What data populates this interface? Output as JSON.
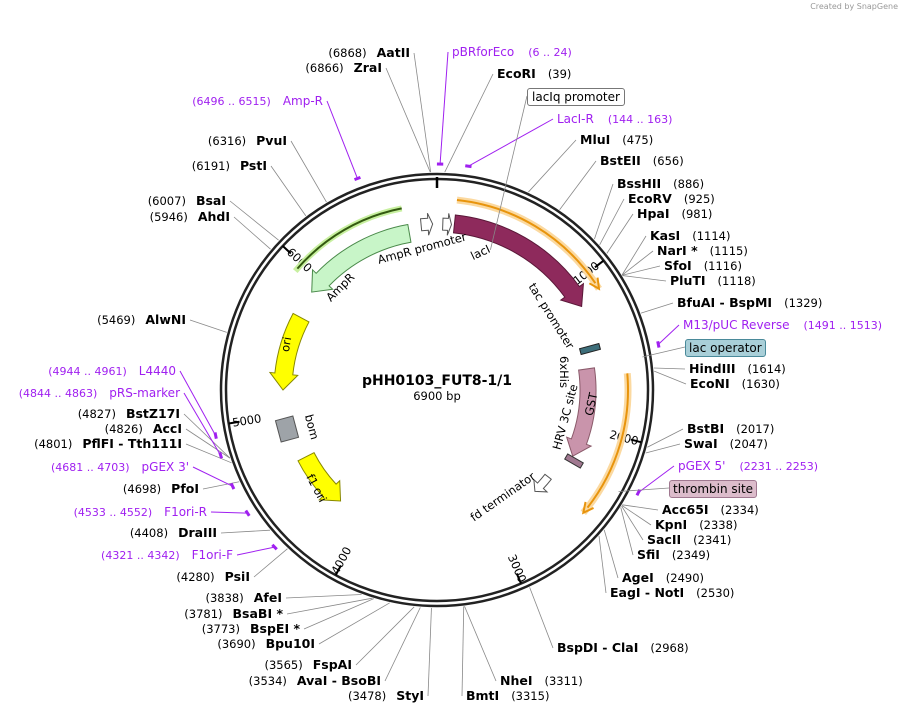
{
  "credit": "Created by SnapGene",
  "title": "pHH0103_FUT8-1/1",
  "size": "6900 bp",
  "total_bp": 6900,
  "ticks": [
    "1000",
    "2000",
    "3000",
    "4000",
    "5000",
    "6000"
  ],
  "sites": [
    {
      "name": "AatII",
      "pos": "(6868)",
      "bp": 6868
    },
    {
      "name": "ZraI",
      "pos": "(6866)",
      "bp": 6866
    },
    {
      "name": "EcoRI",
      "pos": "(39)",
      "bp": 39
    },
    {
      "name": "MluI",
      "pos": "(475)",
      "bp": 475
    },
    {
      "name": "BstEII",
      "pos": "(656)",
      "bp": 656
    },
    {
      "name": "BssHII",
      "pos": "(886)",
      "bp": 886
    },
    {
      "name": "EcoRV",
      "pos": "(925)",
      "bp": 925
    },
    {
      "name": "HpaI",
      "pos": "(981)",
      "bp": 981
    },
    {
      "name": "KasI",
      "pos": "(1114)",
      "bp": 1114
    },
    {
      "name": "NarI *",
      "pos": "(1115)",
      "bp": 1115
    },
    {
      "name": "SfoI",
      "pos": "(1116)",
      "bp": 1116
    },
    {
      "name": "PluTI",
      "pos": "(1118)",
      "bp": 1118
    },
    {
      "name": "BfuAI  - BspMI",
      "pos": "(1329)",
      "bp": 1329
    },
    {
      "name": "HindIII",
      "pos": "(1614)",
      "bp": 1614
    },
    {
      "name": "EcoNI",
      "pos": "(1630)",
      "bp": 1630
    },
    {
      "name": "BstBI",
      "pos": "(2017)",
      "bp": 2017
    },
    {
      "name": "SwaI",
      "pos": "(2047)",
      "bp": 2047
    },
    {
      "name": "Acc65I",
      "pos": "(2334)",
      "bp": 2334
    },
    {
      "name": "KpnI",
      "pos": "(2338)",
      "bp": 2338
    },
    {
      "name": "SacII",
      "pos": "(2341)",
      "bp": 2341
    },
    {
      "name": "SfiI",
      "pos": "(2349)",
      "bp": 2349
    },
    {
      "name": "AgeI",
      "pos": "(2490)",
      "bp": 2490
    },
    {
      "name": "EagI  - NotI",
      "pos": "(2530)",
      "bp": 2530
    },
    {
      "name": "BspDI  - ClaI",
      "pos": "(2968)",
      "bp": 2968
    },
    {
      "name": "NheI",
      "pos": "(3311)",
      "bp": 3311
    },
    {
      "name": "BmtI",
      "pos": "(3315)",
      "bp": 3315
    },
    {
      "name": "StyI",
      "pos": "(3478)",
      "bp": 3478
    },
    {
      "name": "AvaI  - BsoBI",
      "pos": "(3534)",
      "bp": 3534
    },
    {
      "name": "FspAI",
      "pos": "(3565)",
      "bp": 3565
    },
    {
      "name": "Bpu10I",
      "pos": "(3690)",
      "bp": 3690
    },
    {
      "name": "BspEI *",
      "pos": "(3773)",
      "bp": 3773
    },
    {
      "name": "BsaBI *",
      "pos": "(3781)",
      "bp": 3781
    },
    {
      "name": "AfeI",
      "pos": "(3838)",
      "bp": 3838
    },
    {
      "name": "PsiI",
      "pos": "(4280)",
      "bp": 4280
    },
    {
      "name": "DraIII",
      "pos": "(4408)",
      "bp": 4408
    },
    {
      "name": "PfoI",
      "pos": "(4698)",
      "bp": 4698
    },
    {
      "name": "PflFI  - Tth111I",
      "pos": "(4801)",
      "bp": 4801
    },
    {
      "name": "AccI",
      "pos": "(4826)",
      "bp": 4826
    },
    {
      "name": "BstZ17I",
      "pos": "(4827)",
      "bp": 4827
    },
    {
      "name": "AlwNI",
      "pos": "(5469)",
      "bp": 5469
    },
    {
      "name": "AhdI",
      "pos": "(5946)",
      "bp": 5946
    },
    {
      "name": "BsaI",
      "pos": "(6007)",
      "bp": 6007
    },
    {
      "name": "PstI",
      "pos": "(6191)",
      "bp": 6191
    },
    {
      "name": "PvuI",
      "pos": "(6316)",
      "bp": 6316
    }
  ],
  "primers": [
    {
      "name": "pBRforEco",
      "range": "(6 .. 24)",
      "bp": 15
    },
    {
      "name": "LacI-R",
      "range": "(144 .. 163)",
      "bp": 153
    },
    {
      "name": "M13/pUC Reverse",
      "range": "(1491 .. 1513)",
      "bp": 1502
    },
    {
      "name": "pGEX 5'",
      "range": "(2231 .. 2253)",
      "bp": 2242
    },
    {
      "name": "F1ori-F",
      "range": "(4321 .. 4342)",
      "bp": 4331
    },
    {
      "name": "F1ori-R",
      "range": "(4533 .. 4552)",
      "bp": 4542
    },
    {
      "name": "pGEX 3'",
      "range": "(4681 .. 4703)",
      "bp": 4692
    },
    {
      "name": "pRS-marker",
      "range": "(4844 .. 4863)",
      "bp": 4853
    },
    {
      "name": "L4440",
      "range": "(4944 .. 4961)",
      "bp": 4952
    },
    {
      "name": "Amp-R",
      "range": "(6496 .. 6515)",
      "bp": 6505
    }
  ],
  "boxed": [
    {
      "name": "lacIq promoter",
      "color": "#ffffff"
    },
    {
      "name": "lac operator",
      "color": "#a9cfd8"
    },
    {
      "name": "thrombin site",
      "color": "#dcbccb"
    }
  ],
  "features": {
    "lacI": "lacI",
    "tac": "tac promoter",
    "his": "6xHis",
    "hrv": "HRV 3C site",
    "gst": "GST",
    "fd": "fd terminator",
    "ampr": "AmpR",
    "ampr_prom": "AmpR promoter",
    "ori": "ori",
    "bom": "bom",
    "f1": "f1 ori"
  },
  "colors": {
    "lacI": "#8e2a5c",
    "gst": "#c994ab",
    "ampr": "#c8f5c8",
    "ori": "#ffff00",
    "primer": "#a020f0",
    "highlight": "#f5a623"
  }
}
